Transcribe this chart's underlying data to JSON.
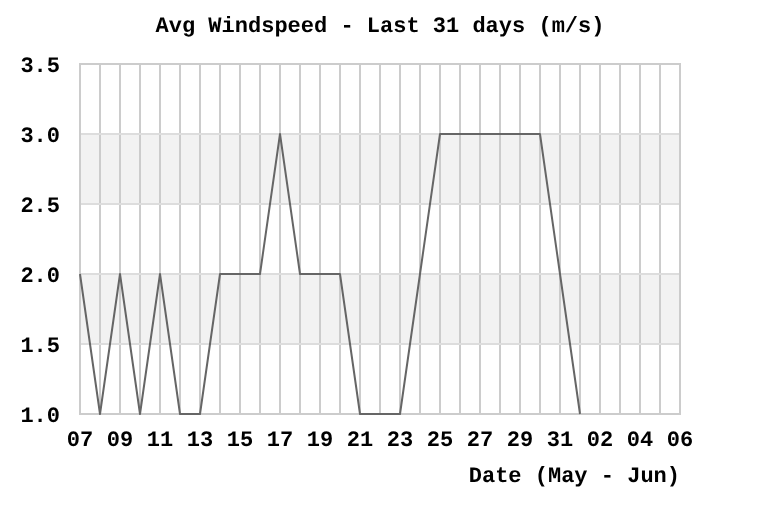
{
  "chart_data": {
    "type": "line",
    "title": "Avg Windspeed - Last 31 days (m/s)",
    "xlabel": "Date (May - Jun)",
    "categories": [
      "07",
      null,
      "09",
      null,
      "11",
      null,
      "13",
      null,
      "15",
      null,
      "17",
      null,
      "19",
      null,
      "21",
      null,
      "23",
      null,
      "25",
      null,
      "27",
      null,
      "29",
      null,
      "31",
      null,
      "02",
      null,
      "04",
      null,
      "06"
    ],
    "series": [
      {
        "color": "#666666",
        "values": [
          2,
          1,
          2,
          1,
          2,
          1,
          1,
          2,
          2,
          2,
          3,
          2,
          2,
          2,
          1,
          1,
          1,
          2,
          3,
          3,
          3,
          3,
          3,
          3,
          2,
          1,
          null,
          null,
          null,
          null,
          null
        ]
      }
    ],
    "ylim": [
      1.0,
      3.5
    ],
    "yticks": [
      {
        "value": 1,
        "label": "1.0"
      },
      {
        "value": 1.5,
        "label": "1.5"
      },
      {
        "value": 2,
        "label": "2.0"
      },
      {
        "value": 2.5,
        "label": "2.5"
      },
      {
        "value": 3,
        "label": "3.0"
      },
      {
        "value": 3.5,
        "label": "3.5"
      }
    ],
    "bands": [
      {
        "axis": "y",
        "from": 1.5,
        "to": 2.0,
        "color": "#f2f2f2"
      },
      {
        "axis": "y",
        "from": 2.5,
        "to": 3.0,
        "color": "#f2f2f2"
      }
    ],
    "grid": true,
    "marker": "none",
    "line_style": "solid"
  }
}
